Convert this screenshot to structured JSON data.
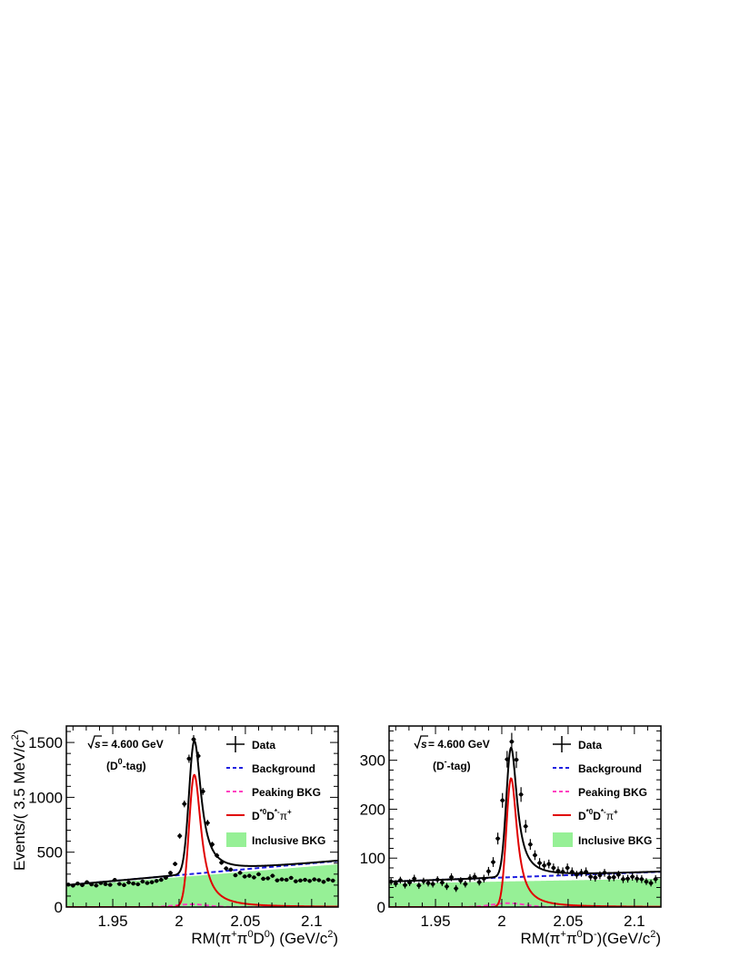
{
  "chart_data": [
    {
      "type": "line",
      "ylabel_parts": {
        "pre": "Events/(  3.5 MeV/",
        "unit": "c",
        "sup": "2",
        "post": ")"
      },
      "xlabel_parts": {
        "rm": "RM(",
        "pi1": "π",
        "pi1sup": "+",
        "pi2": "π",
        "pi2sup": "0",
        "d": "D",
        "dsup": "0",
        "close": ")",
        "units": " (GeV/c",
        "units_sup": "2",
        "units_close": ")"
      },
      "xlim": [
        1.915,
        2.12
      ],
      "ylim": [
        0,
        1650
      ],
      "xticks": [
        1.95,
        2.0,
        2.05,
        2.1
      ],
      "xtick_labels": [
        "1.95",
        "2",
        "2.05",
        "2.1"
      ],
      "yticks": [
        0,
        500,
        1000,
        1500
      ],
      "ytick_labels": [
        "0",
        "500",
        "1000",
        "1500"
      ],
      "annotation_energy": "s = 4.600 GeV",
      "annotation_tag": {
        "pre": "(D",
        "sup": "0",
        "post": "-tag)"
      },
      "legend": {
        "data": "Data",
        "background": "Background",
        "peaking": "Peaking BKG",
        "signal": {
          "a": "D",
          "asup": "*0",
          "b": "D",
          "bsup": "*-",
          "c": "π",
          "csup": "+"
        },
        "inclusive": "Inclusive BKG"
      },
      "model": {
        "bkg0": 200,
        "bkg_slope": 220,
        "inc0": 190,
        "inc_slope": 200,
        "sig_amp": 1205,
        "sig_mu": 2.0115,
        "sig_sigma_l": 0.004,
        "sig_gamma_r": 0.0062,
        "peak_amp": 25,
        "peak_mu": 2.009,
        "peak_sigma": 0.012
      },
      "data_x": [
        1.9165,
        1.92,
        1.9235,
        1.927,
        1.9305,
        1.934,
        1.9375,
        1.941,
        1.9445,
        1.948,
        1.9515,
        1.955,
        1.9585,
        1.962,
        1.9655,
        1.969,
        1.9725,
        1.976,
        1.9795,
        1.983,
        1.9865,
        1.99,
        1.9935,
        1.997,
        2.0005,
        2.004,
        2.0075,
        2.011,
        2.0145,
        2.018,
        2.0215,
        2.025,
        2.0285,
        2.032,
        2.0355,
        2.039,
        2.0425,
        2.046,
        2.0495,
        2.053,
        2.0565,
        2.06,
        2.0635,
        2.067,
        2.0705,
        2.074,
        2.0775,
        2.081,
        2.0845,
        2.088,
        2.0915,
        2.095,
        2.0985,
        2.102,
        2.1055,
        2.109,
        2.1125,
        2.116
      ],
      "data_y": [
        205,
        195,
        214,
        200,
        226,
        207,
        196,
        219,
        209,
        203,
        247,
        211,
        201,
        224,
        214,
        208,
        233,
        219,
        226,
        238,
        248,
        267,
        311,
        393,
        648,
        940,
        1352,
        1528,
        1377,
        1054,
        767,
        571,
        470,
        405,
        352,
        341,
        290,
        312,
        278,
        285,
        270,
        299,
        258,
        262,
        285,
        243,
        252,
        248,
        266,
        235,
        242,
        248,
        238,
        252,
        245,
        230,
        250,
        241
      ],
      "data_err": [
        14,
        14,
        14,
        14,
        15,
        14,
        14,
        15,
        14,
        14,
        16,
        15,
        14,
        15,
        15,
        14,
        15,
        15,
        15,
        15,
        16,
        16,
        18,
        20,
        25,
        31,
        37,
        39,
        37,
        32,
        28,
        24,
        22,
        20,
        19,
        18,
        17,
        18,
        17,
        17,
        16,
        17,
        16,
        16,
        17,
        16,
        16,
        16,
        16,
        15,
        16,
        16,
        15,
        16,
        16,
        15,
        16,
        16
      ]
    },
    {
      "type": "line",
      "ylabel_parts": null,
      "xlabel_parts": {
        "rm": "RM(",
        "pi1": "π",
        "pi1sup": "+",
        "pi2": "π",
        "pi2sup": "0",
        "d": "D",
        "dsup": "-",
        "close": ")",
        "units": "(GeV/c",
        "units_sup": "2",
        "units_close": ")"
      },
      "xlim": [
        1.915,
        2.12
      ],
      "ylim": [
        0,
        370
      ],
      "xticks": [
        1.95,
        2.0,
        2.05,
        2.1
      ],
      "xtick_labels": [
        "1.95",
        "2",
        "2.05",
        "2.1"
      ],
      "yticks": [
        0,
        100,
        200,
        300
      ],
      "ytick_labels": [
        "0",
        "100",
        "200",
        "300"
      ],
      "annotation_energy": "s = 4.600 GeV",
      "annotation_tag": {
        "pre": "(D",
        "sup": "-",
        "post": "-tag)"
      },
      "legend": {
        "data": "Data",
        "background": "Background",
        "peaking": "Peaking BKG",
        "signal": {
          "a": "D",
          "asup": "*0",
          "b": "D",
          "bsup": "*-",
          "c": "π",
          "csup": "+"
        },
        "inclusive": "Inclusive BKG"
      },
      "model": {
        "bkg0": 52,
        "bkg_slope": 20,
        "inc0": 48,
        "inc_slope": 10,
        "sig_amp": 263,
        "sig_mu": 2.007,
        "sig_sigma_l": 0.0036,
        "sig_gamma_r": 0.0055,
        "peak_amp": 8,
        "peak_mu": 2.005,
        "peak_sigma": 0.012
      },
      "data_x": [
        1.9165,
        1.92,
        1.9235,
        1.927,
        1.9305,
        1.934,
        1.9375,
        1.941,
        1.9445,
        1.948,
        1.9515,
        1.955,
        1.9585,
        1.962,
        1.9655,
        1.969,
        1.9725,
        1.976,
        1.9795,
        1.983,
        1.9865,
        1.99,
        1.9935,
        1.997,
        2.0005,
        2.004,
        2.0075,
        2.011,
        2.0145,
        2.018,
        2.0215,
        2.025,
        2.0285,
        2.032,
        2.0355,
        2.039,
        2.0425,
        2.046,
        2.0495,
        2.053,
        2.0565,
        2.06,
        2.0635,
        2.067,
        2.0705,
        2.074,
        2.0775,
        2.081,
        2.0845,
        2.088,
        2.0915,
        2.095,
        2.0985,
        2.102,
        2.1055,
        2.109,
        2.1125,
        2.116
      ],
      "data_y": [
        52,
        48,
        55,
        45,
        50,
        58,
        44,
        53,
        49,
        47,
        56,
        50,
        42,
        61,
        38,
        54,
        47,
        59,
        62,
        51,
        58,
        73,
        92,
        140,
        218,
        302,
        338,
        301,
        230,
        165,
        128,
        106,
        90,
        85,
        88,
        80,
        74,
        72,
        80,
        72,
        66,
        70,
        72,
        62,
        60,
        65,
        70,
        60,
        61,
        66,
        57,
        58,
        62,
        58,
        57,
        52,
        49,
        57
      ],
      "data_err": [
        7,
        7,
        7,
        7,
        7,
        8,
        7,
        7,
        7,
        7,
        7,
        7,
        7,
        8,
        7,
        7,
        7,
        8,
        8,
        7,
        8,
        9,
        10,
        12,
        15,
        17,
        18,
        17,
        15,
        13,
        11,
        10,
        10,
        9,
        9,
        9,
        9,
        9,
        9,
        9,
        8,
        8,
        9,
        8,
        8,
        8,
        8,
        8,
        8,
        8,
        8,
        8,
        8,
        8,
        8,
        7,
        7,
        8
      ]
    }
  ],
  "colors": {
    "data": "#000000",
    "total_fit": "#000000",
    "background": "#1f1fe0",
    "peaking": "#ff40c0",
    "signal": "#e00000",
    "inclusive_fill": "#96f096"
  }
}
